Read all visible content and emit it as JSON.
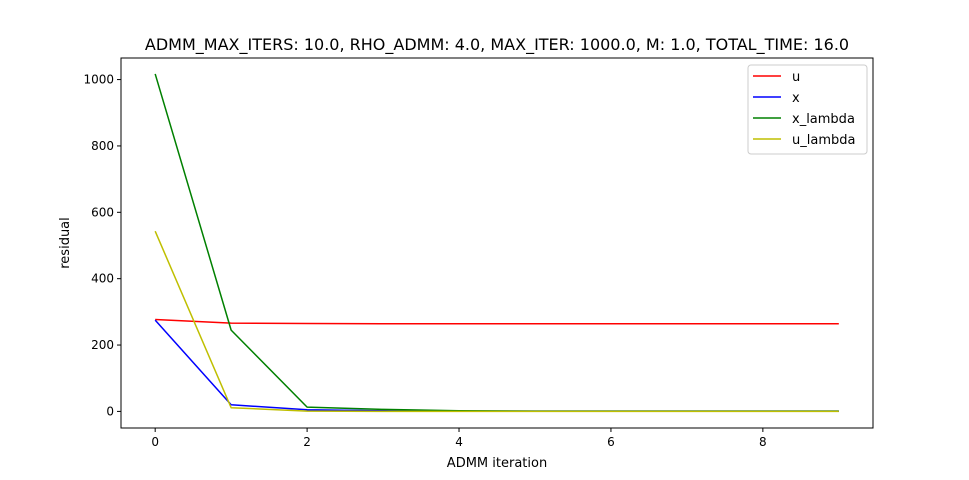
{
  "chart_data": {
    "type": "line",
    "title": "ADMM_MAX_ITERS: 10.0, RHO_ADMM: 4.0, MAX_ITER: 1000.0, M: 1.0, TOTAL_TIME: 16.0",
    "xlabel": "ADMM iteration",
    "ylabel": "residual",
    "xlim": [
      -0.45,
      9.45
    ],
    "ylim": [
      -50,
      1065
    ],
    "xticks": [
      0,
      2,
      4,
      6,
      8
    ],
    "yticks": [
      0,
      200,
      400,
      600,
      800,
      1000
    ],
    "x": [
      0,
      1,
      2,
      3,
      4,
      5,
      6,
      7,
      8,
      9
    ],
    "grid": false,
    "legend_position": "top-right",
    "series": [
      {
        "name": "u",
        "color": "#ff0000",
        "values": [
          277,
          266,
          265,
          264,
          264,
          264,
          264,
          264,
          264,
          264
        ]
      },
      {
        "name": "x",
        "color": "#0000ff",
        "values": [
          275,
          20,
          5,
          2,
          1,
          1,
          1,
          1,
          1,
          1
        ]
      },
      {
        "name": "x_lambda",
        "color": "#008000",
        "values": [
          1017,
          245,
          13,
          6,
          2,
          1,
          1,
          1,
          1,
          1
        ]
      },
      {
        "name": "u_lambda",
        "color": "#bfbf00",
        "values": [
          543,
          11,
          1,
          0,
          0,
          0,
          0,
          0,
          0,
          0
        ]
      }
    ]
  }
}
